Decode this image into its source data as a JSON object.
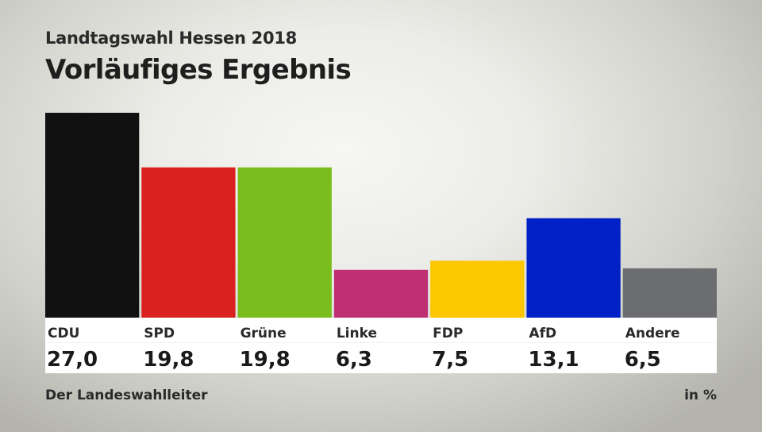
{
  "header": {
    "subtitle": "Landtagswahl Hessen 2018",
    "title": "Vorläufiges Ergebnis"
  },
  "footer": {
    "source": "Der Landeswahlleiter",
    "unit": "in %"
  },
  "chart_data": {
    "type": "bar",
    "subtitle": "Landtagswahl Hessen 2018",
    "title": "Vorläufiges Ergebnis",
    "categories": [
      "CDU",
      "SPD",
      "Grüne",
      "Linke",
      "FDP",
      "AfD",
      "Andere"
    ],
    "values": [
      27.0,
      19.8,
      19.8,
      6.3,
      7.5,
      13.1,
      6.5
    ],
    "value_labels": [
      "27,0",
      "19,8",
      "19,8",
      "6,3",
      "7,5",
      "13,1",
      "6,5"
    ],
    "colors": [
      "#111111",
      "#d9221f",
      "#79be1c",
      "#bf2f74",
      "#fdc700",
      "#0021c5",
      "#6c6d70"
    ],
    "ylabel": "in %",
    "ylim": [
      0,
      27.0
    ],
    "grid": false,
    "legend": "none"
  }
}
